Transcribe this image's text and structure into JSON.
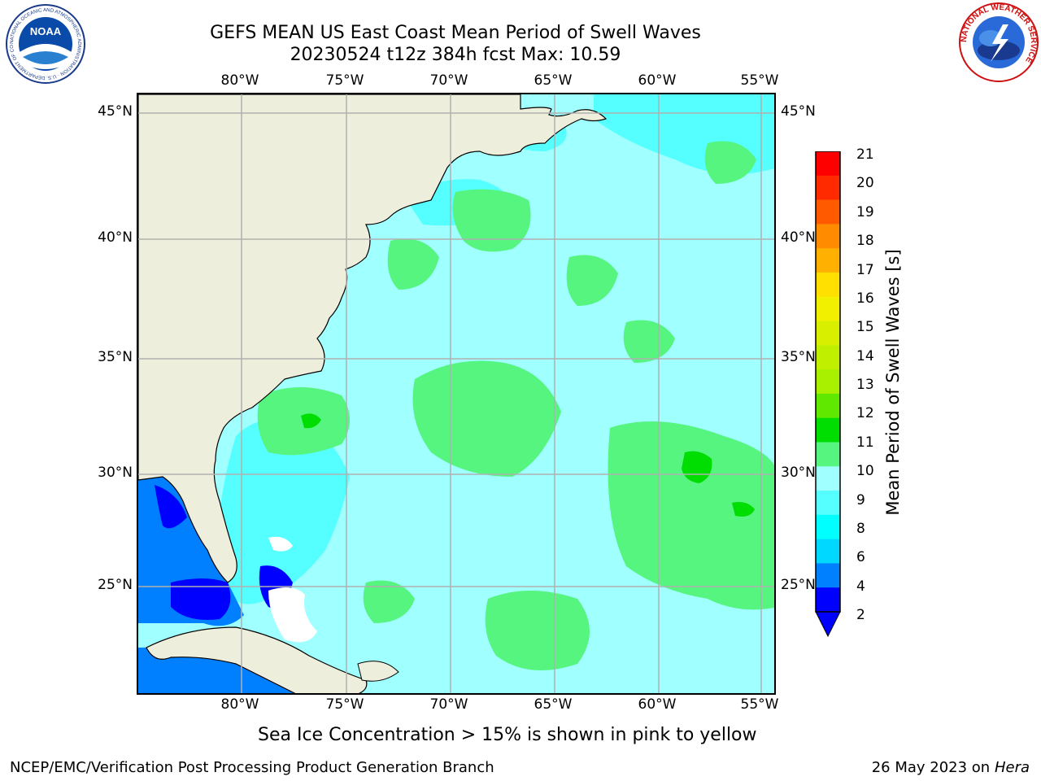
{
  "title": {
    "line1": "GEFS MEAN US East Coast Mean Period of Swell Waves",
    "line2": "20230524 t12z 384h fcst   Max: 10.59"
  },
  "axes": {
    "lon_labels": [
      "80°W",
      "75°W",
      "70°W",
      "65°W",
      "60°W",
      "55°W"
    ],
    "lat_labels_left": [
      "45°N",
      "40°N",
      "35°N",
      "30°N",
      "25°N"
    ],
    "lat_labels_right": [
      "45°N",
      "40°N",
      "35°N",
      "30°N",
      "25°N"
    ]
  },
  "colorbar": {
    "title": "Mean Period of Swell Waves [s]",
    "ticks": [
      "21",
      "20",
      "19",
      "18",
      "17",
      "16",
      "15",
      "14",
      "13",
      "12",
      "11",
      "10",
      "9",
      "8",
      "6",
      "4",
      "2"
    ],
    "colors": [
      "#ff0000",
      "#ff2a00",
      "#ff5a00",
      "#ff8c00",
      "#ffb000",
      "#ffe000",
      "#f0f000",
      "#d8f000",
      "#c0f000",
      "#a8f000",
      "#60e800",
      "#00dd00",
      "#55f580",
      "#a0ffff",
      "#55ffff",
      "#00ffff",
      "#00d8ff",
      "#0080ff",
      "#0000ff"
    ],
    "extend_color": "#0000ff"
  },
  "colors": {
    "land": "#eeeedc",
    "ocean_base": "#a0ffff",
    "swell_8": "#55ffff",
    "swell_9": "#55f580",
    "swell_10": "#00dd00",
    "swell_low": "#0080ff",
    "swell_lowest": "#0000ff",
    "grid": "#b0b0b0"
  },
  "note": "Sea Ice Concentration > 15% is shown in pink to yellow",
  "footer": {
    "credit": "NCEP/EMC/Verification Post Processing Product Generation Branch",
    "date": "26 May 2023 on",
    "system": "Hera"
  },
  "logos": {
    "noaa_text": "NOAA",
    "noaa_ring_text": "NATIONAL OCEANIC AND ATMOSPHERIC ADMINISTRATION · U.S. DEPARTMENT OF COMMERCE",
    "nws_ring_text": "NATIONAL WEATHER SERVICE"
  }
}
